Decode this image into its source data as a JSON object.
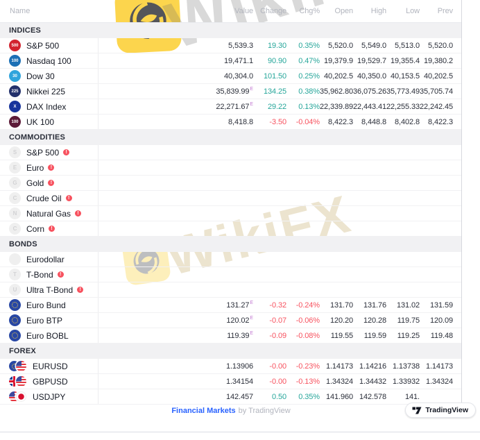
{
  "colors": {
    "up": "#26a69a",
    "down": "#f7525f",
    "link": "#2962ff",
    "warning": "#f7525f"
  },
  "markers": {
    "delayed": "E"
  },
  "watermark": {
    "brand": "WikiFX"
  },
  "badge": {
    "label": "TradingView"
  },
  "footer": {
    "link": "Financial Markets",
    "suffix": "by TradingView"
  },
  "header": {
    "columns": [
      "Name",
      "Value",
      "Change",
      "Chg%",
      "Open",
      "High",
      "Low",
      "Prev"
    ]
  },
  "sections": [
    {
      "label": "INDICES",
      "id": "indices",
      "rows": [
        {
          "id": "sp500",
          "name": "S&P 500",
          "icon": {
            "kind": "badge",
            "text": "500",
            "bg": "#d2232e",
            "name": "sp500-icon"
          },
          "warning": false,
          "delayed": false,
          "dir": "up",
          "vals": [
            "5,539.3",
            "19.30",
            "0.35%",
            "5,520.0",
            "5,549.0",
            "5,513.0",
            "5,520.0"
          ]
        },
        {
          "id": "nasdaq100",
          "name": "Nasdaq 100",
          "icon": {
            "kind": "badge",
            "text": "100",
            "bg": "#1b6fb5",
            "name": "nasdaq100-icon"
          },
          "warning": false,
          "delayed": false,
          "dir": "up",
          "vals": [
            "19,471.1",
            "90.90",
            "0.47%",
            "19,379.9",
            "19,529.7",
            "19,355.4",
            "19,380.2"
          ]
        },
        {
          "id": "dow30",
          "name": "Dow 30",
          "icon": {
            "kind": "badge",
            "text": "30",
            "bg": "#30a4dc",
            "name": "dow30-icon"
          },
          "warning": false,
          "delayed": false,
          "dir": "up",
          "vals": [
            "40,304.0",
            "101.50",
            "0.25%",
            "40,202.5",
            "40,350.0",
            "40,153.5",
            "40,202.5"
          ]
        },
        {
          "id": "nikkei225",
          "name": "Nikkei 225",
          "icon": {
            "kind": "badge",
            "text": "225",
            "bg": "#22306b",
            "name": "nikkei225-icon"
          },
          "warning": false,
          "delayed": true,
          "dir": "up",
          "vals": [
            "35,839.99",
            "134.25",
            "0.38%",
            "35,962.80",
            "36,075.26",
            "35,773.49",
            "35,705.74"
          ]
        },
        {
          "id": "dax",
          "name": "DAX Index",
          "icon": {
            "kind": "badge",
            "text": "X",
            "bg": "#17339c",
            "name": "dax-icon"
          },
          "warning": false,
          "delayed": true,
          "dir": "up",
          "vals": [
            "22,271.67",
            "29.22",
            "0.13%",
            "22,339.89",
            "22,443.41",
            "22,255.33",
            "22,242.45"
          ]
        },
        {
          "id": "uk100",
          "name": "UK 100",
          "icon": {
            "kind": "badge",
            "text": "100",
            "bg": "#5c1a38",
            "name": "uk100-icon"
          },
          "warning": false,
          "delayed": false,
          "dir": "down",
          "vals": [
            "8,418.8",
            "-3.50",
            "-0.04%",
            "8,422.3",
            "8,448.8",
            "8,402.8",
            "8,422.3"
          ]
        }
      ]
    },
    {
      "label": "COMMODITIES",
      "id": "commodities",
      "rows": [
        {
          "id": "sp500-fut",
          "name": "S&P 500",
          "icon": {
            "kind": "gray",
            "text": "S",
            "name": "sp500-futures-icon"
          },
          "warning": true,
          "delayed": false,
          "dir": null,
          "vals": []
        },
        {
          "id": "euro-fut",
          "name": "Euro",
          "icon": {
            "kind": "gray",
            "text": "E",
            "name": "euro-futures-icon"
          },
          "warning": true,
          "delayed": false,
          "dir": null,
          "vals": []
        },
        {
          "id": "gold",
          "name": "Gold",
          "icon": {
            "kind": "gray",
            "text": "G",
            "name": "gold-icon"
          },
          "warning": true,
          "delayed": false,
          "dir": null,
          "vals": []
        },
        {
          "id": "crude-oil",
          "name": "Crude Oil",
          "icon": {
            "kind": "gray",
            "text": "C",
            "name": "crude-oil-icon"
          },
          "warning": true,
          "delayed": false,
          "dir": null,
          "vals": []
        },
        {
          "id": "natural-gas",
          "name": "Natural Gas",
          "icon": {
            "kind": "gray",
            "text": "N",
            "name": "natural-gas-icon"
          },
          "warning": true,
          "delayed": false,
          "dir": null,
          "vals": []
        },
        {
          "id": "corn",
          "name": "Corn",
          "icon": {
            "kind": "gray",
            "text": "C",
            "name": "corn-icon"
          },
          "warning": true,
          "delayed": false,
          "dir": null,
          "vals": []
        }
      ]
    },
    {
      "label": "BONDS",
      "id": "bonds",
      "rows": [
        {
          "id": "eurodollar",
          "name": "Eurodollar",
          "icon": {
            "kind": "gray",
            "text": "",
            "name": "eurodollar-icon"
          },
          "warning": false,
          "delayed": false,
          "dir": null,
          "vals": []
        },
        {
          "id": "t-bond",
          "name": "T-Bond",
          "icon": {
            "kind": "gray",
            "text": "T",
            "name": "t-bond-icon"
          },
          "warning": true,
          "delayed": false,
          "dir": null,
          "vals": []
        },
        {
          "id": "ultra-t-bond",
          "name": "Ultra T-Bond",
          "icon": {
            "kind": "gray",
            "text": "U",
            "name": "ultra-t-bond-icon"
          },
          "warning": true,
          "delayed": false,
          "dir": null,
          "vals": []
        },
        {
          "id": "euro-bund",
          "name": "Euro Bund",
          "icon": {
            "kind": "eu",
            "name": "eu-flag-icon"
          },
          "warning": false,
          "delayed": true,
          "dir": "down",
          "vals": [
            "131.27",
            "-0.32",
            "-0.24%",
            "131.70",
            "131.76",
            "131.02",
            "131.59"
          ]
        },
        {
          "id": "euro-btp",
          "name": "Euro BTP",
          "icon": {
            "kind": "eu",
            "name": "eu-flag-icon"
          },
          "warning": false,
          "delayed": true,
          "dir": "down",
          "vals": [
            "120.02",
            "-0.07",
            "-0.06%",
            "120.20",
            "120.28",
            "119.75",
            "120.09"
          ]
        },
        {
          "id": "euro-bobl",
          "name": "Euro BOBL",
          "icon": {
            "kind": "eu",
            "name": "eu-flag-icon"
          },
          "warning": false,
          "delayed": true,
          "dir": "down",
          "vals": [
            "119.39",
            "-0.09",
            "-0.08%",
            "119.55",
            "119.59",
            "119.25",
            "119.48"
          ]
        }
      ]
    },
    {
      "label": "FOREX",
      "id": "forex",
      "rows": [
        {
          "id": "eurusd",
          "name": "EURUSD",
          "icon": {
            "kind": "pair",
            "name": "eurusd-flags-icon",
            "parts": [
              {
                "kind": "eu",
                "name": "eu-flag-icon"
              },
              {
                "kind": "us",
                "name": "us-flag-icon"
              }
            ]
          },
          "warning": false,
          "delayed": false,
          "dir": "down",
          "vals": [
            "1.13906",
            "-0.00",
            "-0.23%",
            "1.14173",
            "1.14216",
            "1.13738",
            "1.14173"
          ]
        },
        {
          "id": "gbpusd",
          "name": "GBPUSD",
          "icon": {
            "kind": "pair",
            "name": "gbpusd-flags-icon",
            "parts": [
              {
                "kind": "uk",
                "name": "uk-flag-icon"
              },
              {
                "kind": "us",
                "name": "us-flag-icon"
              }
            ]
          },
          "warning": false,
          "delayed": false,
          "dir": "down",
          "vals": [
            "1.34154",
            "-0.00",
            "-0.13%",
            "1.34324",
            "1.34432",
            "1.33932",
            "1.34324"
          ]
        },
        {
          "id": "usdjpy",
          "name": "USDJPY",
          "icon": {
            "kind": "pair",
            "name": "usdjpy-flags-icon",
            "parts": [
              {
                "kind": "us",
                "name": "us-flag-icon"
              },
              {
                "kind": "jp",
                "name": "jp-flag-icon"
              }
            ]
          },
          "warning": false,
          "delayed": false,
          "dir": "up",
          "vals": [
            "142.457",
            "0.50",
            "0.35%",
            "141.960",
            "142.578",
            "141.",
            ""
          ]
        }
      ]
    }
  ]
}
